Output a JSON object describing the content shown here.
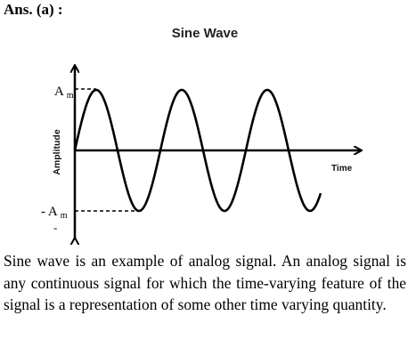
{
  "answer_label": "Ans. (a) :",
  "diagram": {
    "title": "Sine Wave",
    "y_axis_label": "Amplitude",
    "x_axis_label": "Time",
    "pos_amp_main": "A",
    "pos_amp_sub": "m",
    "neg_amp_main": "- A",
    "neg_amp_sub": "m",
    "minus_mark": "-",
    "wave_cycles": 3,
    "line_color": "#000000"
  },
  "explanation": "Sine wave is an example of analog signal. An analog signal is any continuous signal for which the time-varying feature of the signal is a representation of some other time varying quantity."
}
